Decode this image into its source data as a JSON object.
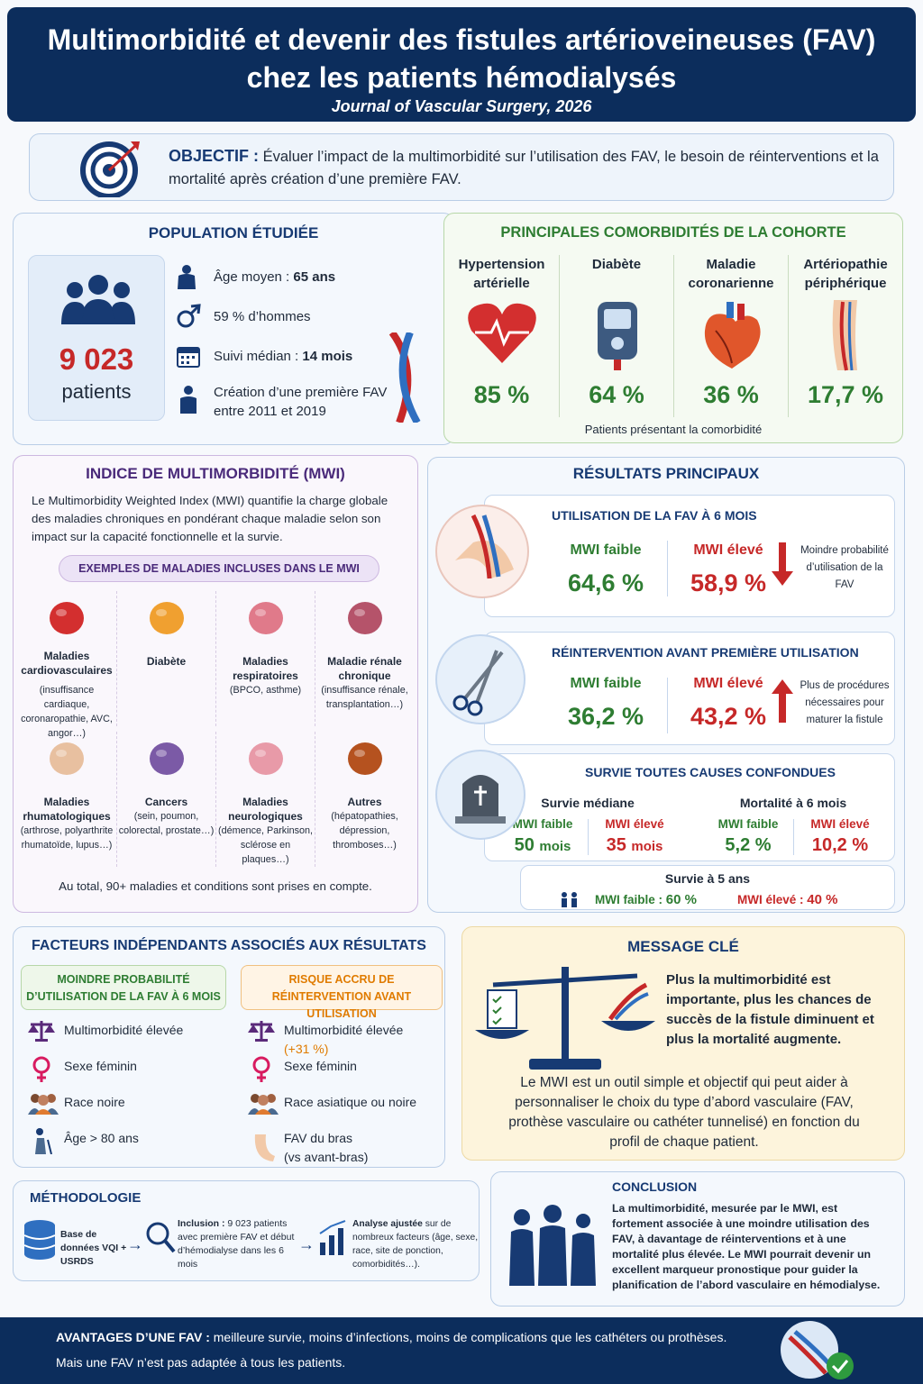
{
  "header": {
    "title_line1": "Multimorbidité et devenir des fistules artérioveineuses (FAV)",
    "title_line2": "chez les patients hémodialysés",
    "journal": "Journal of Vascular Surgery, 2026"
  },
  "objective": {
    "label": "OBJECTIF :",
    "text": "Évaluer l’impact de la multimorbidité sur l’utilisation des FAV, le besoin de réinterventions et la mortalité après création d’une première FAV."
  },
  "population": {
    "title": "POPULATION ÉTUDIÉE",
    "count": "9 023",
    "count_label": "patients",
    "age_label": "Âge moyen :",
    "age_value": "65 ans",
    "men": "59 % d’hommes",
    "followup_label": "Suivi médian :",
    "followup_value": "14 mois",
    "creation": "Création d’une première FAV entre 2011 et 2019"
  },
  "comorbidities": {
    "title": "PRINCIPALES COMORBIDITÉS DE LA COHORTE",
    "items": [
      {
        "name": "Hypertension artérielle",
        "value": "85 %"
      },
      {
        "name": "Diabète",
        "value": "64 %"
      },
      {
        "name": "Maladie coronarienne",
        "value": "36 %"
      },
      {
        "name": "Artériopathie périphérique",
        "value": "17,7 %"
      }
    ],
    "note": "Patients présentant la comorbidité"
  },
  "mwi": {
    "title": "INDICE DE MULTIMORBIDITÉ (MWI)",
    "description": "Le Multimorbidity Weighted Index (MWI) quantifie la charge globale des maladies chroniques en pondérant chaque maladie selon son impact sur la capacité fonctionnelle et la survie.",
    "examples_title": "EXEMPLES DE MALADIES INCLUSES DANS LE MWI",
    "diseases": [
      {
        "name": "Maladies cardiovasculaires",
        "detail": "(insuffisance cardiaque, coronaropathie, AVC, angor…)"
      },
      {
        "name": "Diabète"
      },
      {
        "name": "Maladies respiratoires",
        "detail": "(BPCO, asthme)"
      },
      {
        "name": "Maladie rénale chronique",
        "detail": "(insuffisance rénale, transplantation…)"
      },
      {
        "name": "Maladies rhumatologiques",
        "detail": "(arthrose, polyarthrite rhumatoïde, lupus…)"
      },
      {
        "name": "Cancers",
        "detail": "(sein, poumon, colorectal, prostate…)"
      },
      {
        "name": "Maladies neurologiques",
        "detail": "(démence, Parkinson, sclérose en plaques…)"
      },
      {
        "name": "Autres",
        "detail": "(hépatopathies, dépression, thromboses…)"
      }
    ],
    "total": "Au total, 90+ maladies et conditions sont prises en compte."
  },
  "results": {
    "title": "RÉSULTATS PRINCIPAUX",
    "fav_use": {
      "title": "UTILISATION DE LA FAV À 6 MOIS",
      "low_label": "MWI faible",
      "low_value": "64,6 %",
      "high_label": "MWI élevé",
      "high_value": "58,9 %",
      "note": "Moindre probabilité d’utilisation de la FAV"
    },
    "reintervention": {
      "title": "RÉINTERVENTION AVANT PREMIÈRE UTILISATION",
      "low_label": "MWI faible",
      "low_value": "36,2 %",
      "high_label": "MWI élevé",
      "high_value": "43,2 %",
      "note": "Plus de procédures nécessaires pour maturer la fistule"
    },
    "survival": {
      "title": "SURVIE TOUTES CAUSES CONFONDUES",
      "median": {
        "title": "Survie médiane",
        "low_label": "MWI faible",
        "low_value": "50",
        "low_unit": "mois",
        "high_label": "MWI élevé",
        "high_value": "35",
        "high_unit": "mois"
      },
      "mortality": {
        "title": "Mortalité à 6 mois",
        "low_label": "MWI faible",
        "low_value": "5,2 %",
        "high_label": "MWI élevé",
        "high_value": "10,2 %"
      },
      "five_year": {
        "title": "Survie à 5 ans",
        "low_label": "MWI faible :",
        "low_value": "60 %",
        "high_label": "MWI élevé :",
        "high_value": "40 %"
      }
    }
  },
  "factors": {
    "title": "FACTEURS INDÉPENDANTS ASSOCIÉS AUX RÉSULTATS",
    "use": {
      "title": "MOINDRE PROBABILITÉ D’UTILISATION DE LA FAV À 6 MOIS",
      "items": [
        {
          "text": "Multimorbidité élevée"
        },
        {
          "text": "Sexe féminin"
        },
        {
          "text": "Race noire"
        },
        {
          "text": "Âge > 80 ans"
        }
      ]
    },
    "reint": {
      "title": "RISQUE ACCRU DE RÉINTERVENTION AVANT UTILISATION",
      "items": [
        {
          "text": "Multimorbidité élevée",
          "detail": "(+31 %)"
        },
        {
          "text": "Sexe féminin"
        },
        {
          "text": "Race asiatique ou noire"
        },
        {
          "text": "FAV du bras",
          "detail": "(vs avant-bras)"
        }
      ]
    }
  },
  "key_message": {
    "title": "MESSAGE CLÉ",
    "text1": "Plus la multimorbidité est importante, plus les chances de succès de la fistule diminuent et plus la mortalité augmente.",
    "text2": "Le MWI est un outil simple et objectif qui peut aider à personnaliser le choix du type d’abord vasculaire (FAV, prothèse vasculaire ou cathéter tunnelisé) en fonction du profil de chaque patient."
  },
  "methodology": {
    "title": "MÉTHODOLOGIE",
    "database": "Base de données VQI + USRDS",
    "inclusion_label": "Inclusion :",
    "inclusion_text": "9 023 patients avec première FAV et début d’hémodialyse dans les 6 mois",
    "analysis_label": "Analyse ajustée",
    "analysis_text": "sur de nombreux facteurs (âge, sexe, race, site de ponction, comorbidités…)."
  },
  "conclusion": {
    "title": "CONCLUSION",
    "text": "La multimorbidité, mesurée par le MWI, est fortement associée à une moindre utilisation des FAV, à davantage de réinterventions et à une mortalité plus élevée. Le MWI pourrait devenir un excellent marqueur pronostique pour guider la planification de l’abord vasculaire en hémodialyse."
  },
  "footer": {
    "label": "AVANTAGES D’UNE FAV :",
    "text": "meilleure survie, moins d’infections, moins de complications que les cathéters ou prothèses.",
    "line2": "Mais une FAV n’est pas adaptée à tous les patients."
  }
}
